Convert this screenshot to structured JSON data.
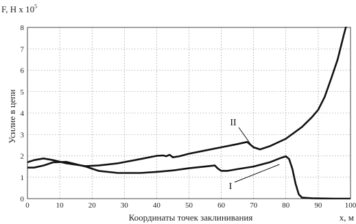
{
  "chart_data": {
    "type": "line",
    "title": "",
    "y_title": "F, Н х 10",
    "y_title_exponent": "5",
    "ylabel": "Усилие в цепи",
    "xlabel": "Координаты точек заклинивания",
    "x_unit": "x, м",
    "xlim": [
      0,
      100
    ],
    "ylim": [
      0,
      8
    ],
    "xticks": [
      0,
      10,
      20,
      30,
      40,
      50,
      60,
      70,
      80,
      90,
      100
    ],
    "yticks": [
      0,
      1,
      2,
      3,
      4,
      5,
      6,
      7,
      8
    ],
    "grid": true,
    "series": [
      {
        "name": "I",
        "x": [
          0,
          2,
          5,
          8,
          12,
          18,
          22,
          28,
          35,
          40,
          45,
          50,
          55,
          58,
          59,
          60,
          62,
          65,
          70,
          75,
          78,
          80,
          81,
          82,
          83,
          84,
          85,
          88,
          95,
          100
        ],
        "y": [
          1.45,
          1.45,
          1.55,
          1.7,
          1.72,
          1.5,
          1.3,
          1.2,
          1.2,
          1.25,
          1.32,
          1.42,
          1.5,
          1.55,
          1.4,
          1.3,
          1.3,
          1.38,
          1.5,
          1.7,
          1.88,
          1.98,
          1.85,
          1.4,
          0.7,
          0.2,
          0.05,
          0.02,
          0.0,
          0.0
        ]
      },
      {
        "name": "II",
        "x": [
          0,
          2,
          5,
          8,
          12,
          18,
          22,
          28,
          35,
          40,
          42,
          43,
          44,
          45,
          47,
          50,
          55,
          60,
          65,
          68,
          70,
          72,
          75,
          80,
          85,
          88,
          90,
          92,
          94,
          96,
          98,
          100
        ],
        "y": [
          1.7,
          1.8,
          1.88,
          1.8,
          1.65,
          1.52,
          1.55,
          1.65,
          1.85,
          2.0,
          2.02,
          1.98,
          2.05,
          1.93,
          1.98,
          2.1,
          2.25,
          2.4,
          2.55,
          2.65,
          2.4,
          2.3,
          2.45,
          2.8,
          3.35,
          3.8,
          4.15,
          4.75,
          5.6,
          6.5,
          7.7,
          8.8
        ]
      }
    ],
    "annotations": [
      {
        "text": "II",
        "series": "II",
        "x": 70,
        "y": 2.35
      },
      {
        "text": "I",
        "series": "I",
        "x": 78,
        "y": 1.6
      }
    ]
  }
}
